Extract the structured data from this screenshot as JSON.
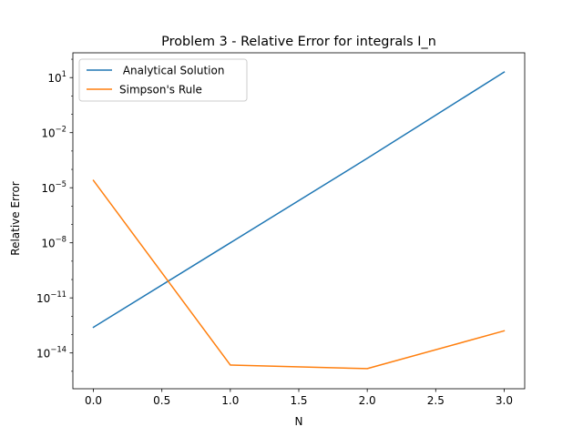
{
  "chart_data": {
    "type": "line",
    "title": "Problem 3 - Relative Error for integrals I_n",
    "xlabel": "N",
    "ylabel": "Relative Error",
    "yscale": "log",
    "xlim": [
      -0.15,
      3.15
    ],
    "ylim_log10": [
      -15.95,
      2.35
    ],
    "x_ticks": [
      0.0,
      0.5,
      1.0,
      1.5,
      2.0,
      2.5,
      3.0
    ],
    "x_tick_labels": [
      "0.0",
      "0.5",
      "1.0",
      "1.5",
      "2.0",
      "2.5",
      "3.0"
    ],
    "y_ticks_log10": [
      1,
      -2,
      -5,
      -8,
      -11,
      -14
    ],
    "y_tick_labels": [
      {
        "base": "10",
        "exp": "1"
      },
      {
        "base": "10",
        "exp": "−2"
      },
      {
        "base": "10",
        "exp": "−5"
      },
      {
        "base": "10",
        "exp": "−8"
      },
      {
        "base": "10",
        "exp": "−11"
      },
      {
        "base": "10",
        "exp": "−14"
      }
    ],
    "grid": false,
    "legend_position": "upper-left",
    "x": [
      0,
      1,
      2,
      3
    ],
    "series": [
      {
        "name": " Analytical Solution",
        "color": "#1f77b4",
        "values": [
          2.5e-13,
          1e-08,
          0.0004,
          20.0
        ]
      },
      {
        "name": "Simpson's Rule",
        "color": "#ff7f0e",
        "values": [
          2.5e-05,
          2.2e-15,
          1.4e-15,
          1.6e-13
        ]
      }
    ]
  }
}
